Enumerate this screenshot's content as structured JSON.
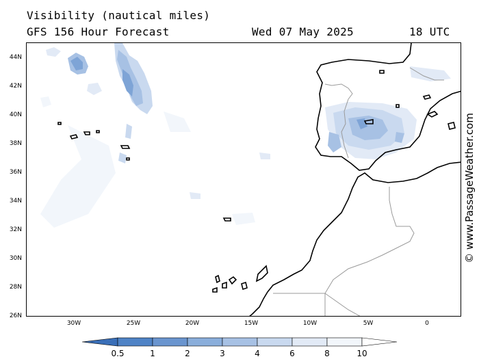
{
  "header": {
    "title": "Visibility (nautical miles)",
    "model": "GFS 156 Hour Forecast",
    "date": "Wed 07 May 2025",
    "hour": "18 UTC"
  },
  "map": {
    "lat_labels": [
      "44N",
      "42N",
      "40N",
      "38N",
      "36N",
      "34N",
      "32N",
      "30N",
      "28N",
      "26N"
    ],
    "lon_labels": [
      "30W",
      "25W",
      "20W",
      "15W",
      "10W",
      "5W",
      "0"
    ],
    "colors": {
      "coast": "#000000",
      "border": "#9a9a9a",
      "vis_0_5": "#3a6fb8",
      "vis_1": "#4f83c6",
      "vis_2": "#7ea4d6",
      "vis_3": "#a7c1e4",
      "vis_4": "#c9d9ef",
      "vis_6": "#e2eaf6",
      "vis_8": "#f2f6fb"
    }
  },
  "legend": {
    "labels": [
      "0.5",
      "1",
      "2",
      "3",
      "4",
      "6",
      "8",
      "10"
    ],
    "colors": [
      "#3a6fb8",
      "#4f83c6",
      "#6a95cf",
      "#8aaedb",
      "#a7c1e4",
      "#c9d9ef",
      "#e2eaf6",
      "#f2f6fb",
      "#ffffff"
    ]
  },
  "credit": "© www.PassageWeather.com"
}
